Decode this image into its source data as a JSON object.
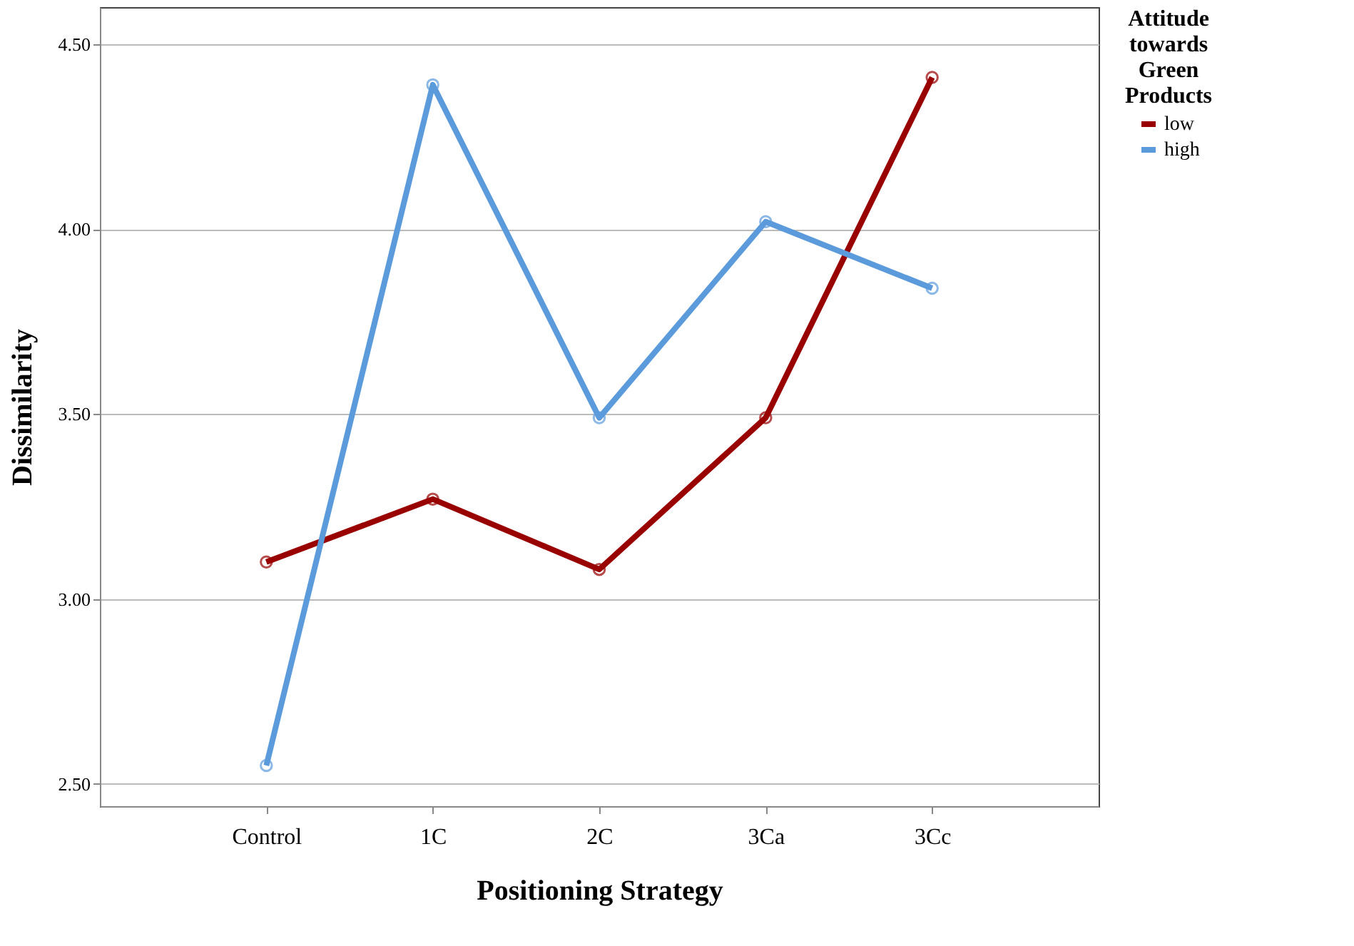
{
  "chart_data": {
    "type": "line",
    "xlabel": "Positioning Strategy",
    "ylabel": "Dissimilarity",
    "legend_title": "Attitude towards Green Products",
    "categories": [
      "Control",
      "1C",
      "2C",
      "3Ca",
      "3Cc"
    ],
    "series": [
      {
        "name": "low",
        "color": "#990000",
        "values": [
          3.1,
          3.27,
          3.08,
          3.49,
          4.41
        ]
      },
      {
        "name": "high",
        "color": "#5b9bdc",
        "values": [
          2.55,
          4.39,
          3.49,
          4.02,
          3.84
        ]
      }
    ],
    "ylim": [
      2.44,
      4.6
    ],
    "yticks": [
      {
        "value": 2.5,
        "label": "2.50"
      },
      {
        "value": 3.0,
        "label": "3.00"
      },
      {
        "value": 3.5,
        "label": "3.50"
      },
      {
        "value": 4.0,
        "label": "4.00"
      },
      {
        "value": 4.5,
        "label": "4.50"
      }
    ],
    "grid": "y",
    "legend": "top right",
    "marker": "circle",
    "line_style": "solid"
  }
}
